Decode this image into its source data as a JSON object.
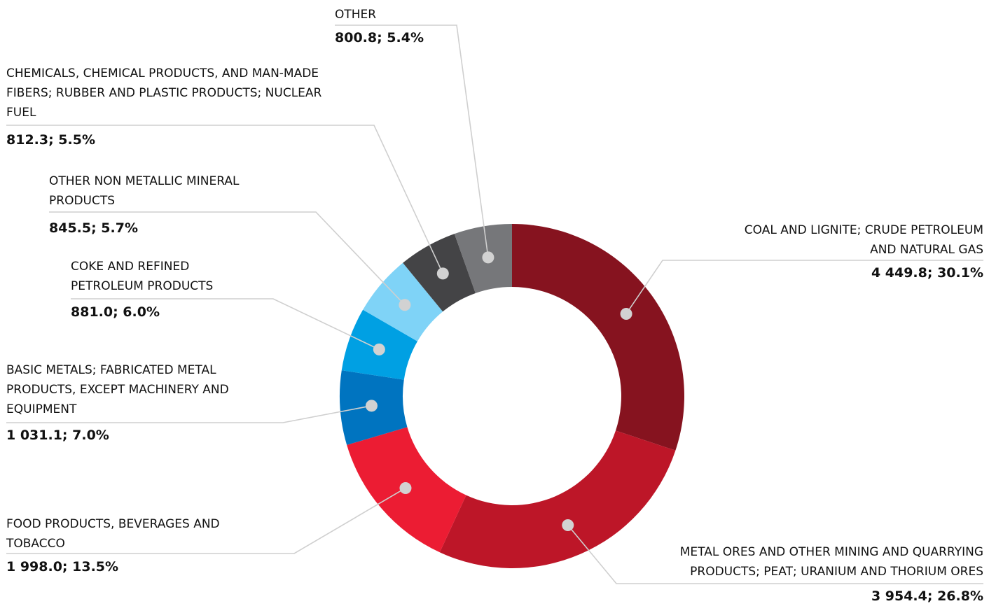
{
  "chart_data": {
    "type": "pie",
    "donut": true,
    "legend": "none",
    "slices": [
      {
        "label_lines": [
          "COAL AND LIGNITE; CRUDE PETROLEUM",
          "AND NATURAL GAS"
        ],
        "value": 4449.8,
        "percent": 30.1,
        "value_text": "4 449.8; 30.1%",
        "color": "#86131f"
      },
      {
        "label_lines": [
          "METAL ORES AND OTHER MINING AND QUARRYING",
          "PRODUCTS; PEAT; URANIUM AND THORIUM ORES"
        ],
        "value": 3954.4,
        "percent": 26.8,
        "value_text": "3 954.4; 26.8%",
        "color": "#bd1628"
      },
      {
        "label_lines": [
          "FOOD PRODUCTS, BEVERAGES AND",
          "TOBACCO"
        ],
        "value": 1998.0,
        "percent": 13.5,
        "value_text": "1 998.0; 13.5%",
        "color": "#ec1c33"
      },
      {
        "label_lines": [
          "BASIC METALS; FABRICATED METAL",
          "PRODUCTS, EXCEPT MACHINERY AND",
          "EQUIPMENT"
        ],
        "value": 1031.1,
        "percent": 7.0,
        "value_text": "1 031.1; 7.0%",
        "color": "#0074c0"
      },
      {
        "label_lines": [
          "COKE AND REFINED",
          "PETROLEUM PRODUCTS"
        ],
        "value": 881.0,
        "percent": 6.0,
        "value_text": "881.0; 6.0%",
        "color": "#00a0e3"
      },
      {
        "label_lines": [
          "OTHER NON METALLIC MINERAL",
          "PRODUCTS"
        ],
        "value": 845.5,
        "percent": 5.7,
        "value_text": "845.5; 5.7%",
        "color": "#7fd3f7"
      },
      {
        "label_lines": [
          "CHEMICALS, CHEMICAL PRODUCTS, AND MAN-MADE",
          "FIBERS; RUBBER AND PLASTIC PRODUCTS; NUCLEAR",
          "FUEL"
        ],
        "value": 812.3,
        "percent": 5.5,
        "value_text": "812.3; 5.5%",
        "color": "#444446"
      },
      {
        "label_lines": [
          "OTHER"
        ],
        "value": 800.8,
        "percent": 5.4,
        "value_text": "800.8; 5.4%",
        "color": "#76777a"
      }
    ]
  }
}
